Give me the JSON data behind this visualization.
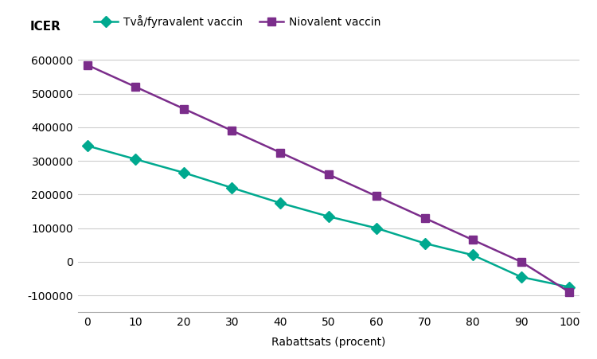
{
  "x": [
    0,
    10,
    20,
    30,
    40,
    50,
    60,
    70,
    80,
    90,
    100
  ],
  "tva_fyra": [
    345000,
    305000,
    265000,
    220000,
    175000,
    135000,
    100000,
    55000,
    20000,
    -45000,
    -75000
  ],
  "niovalent": [
    585000,
    520000,
    455000,
    390000,
    325000,
    260000,
    195000,
    130000,
    65000,
    0,
    -90000
  ],
  "tva_fyra_color": "#00A98F",
  "niovalent_color": "#7B2D8B",
  "tva_fyra_label": "Två/fyravalent vaccin",
  "niovalent_label": "Niovalent vaccin",
  "xlabel": "Rabattsats (procent)",
  "ylabel": "ICER",
  "ylim": [
    -150000,
    650000
  ],
  "xlim": [
    -2,
    102
  ],
  "yticks": [
    -100000,
    0,
    100000,
    200000,
    300000,
    400000,
    500000,
    600000
  ],
  "xticks": [
    0,
    10,
    20,
    30,
    40,
    50,
    60,
    70,
    80,
    90,
    100
  ],
  "background_color": "#FFFFFF",
  "grid_color": "#CCCCCC",
  "line_width": 1.8,
  "marker_size": 7
}
